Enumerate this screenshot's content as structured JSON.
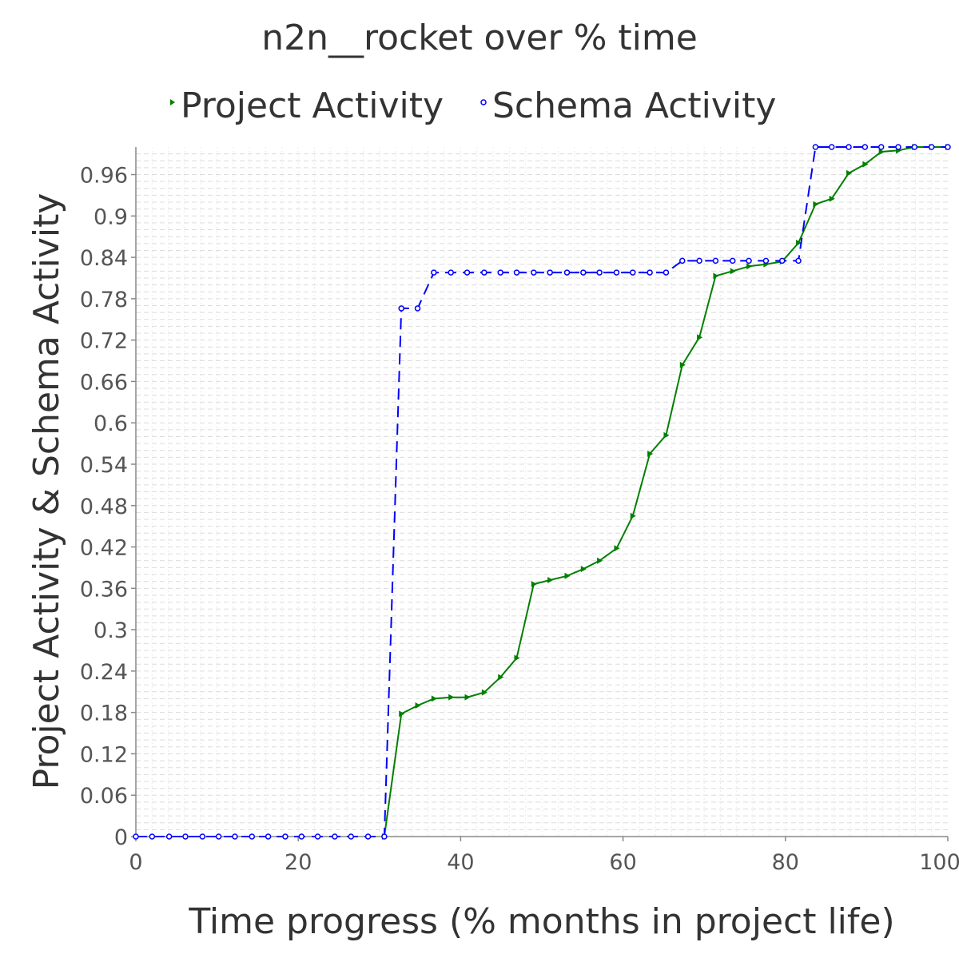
{
  "chart_data": {
    "type": "line",
    "title": "n2n__rocket over % time",
    "xlabel": "Time progress (% months in project life)",
    "ylabel": "Project Activity & Schema Activity",
    "xlim": [
      0,
      100
    ],
    "ylim": [
      0,
      1
    ],
    "x_ticks": [
      "0",
      "20",
      "40",
      "60",
      "80",
      "100"
    ],
    "y_ticks": [
      "0",
      "0.06",
      "0.12",
      "0.18",
      "0.24",
      "0.3",
      "0.36",
      "0.42",
      "0.48",
      "0.54",
      "0.6",
      "0.66",
      "0.72",
      "0.78",
      "0.84",
      "0.9",
      "0.96"
    ],
    "grid": true,
    "legend_position": "top",
    "series": [
      {
        "name": "Project Activity",
        "color": "#008000",
        "line_style": "solid",
        "marker": "triangle-right",
        "points": [
          [
            30.6,
            0.0
          ],
          [
            32.7,
            0.178
          ],
          [
            34.7,
            0.19
          ],
          [
            36.7,
            0.2
          ],
          [
            38.8,
            0.202
          ],
          [
            40.8,
            0.202
          ],
          [
            42.9,
            0.209
          ],
          [
            44.9,
            0.231
          ],
          [
            46.9,
            0.259
          ],
          [
            49.0,
            0.366
          ],
          [
            51.0,
            0.372
          ],
          [
            53.1,
            0.378
          ],
          [
            55.1,
            0.388
          ],
          [
            57.1,
            0.4
          ],
          [
            59.2,
            0.418
          ],
          [
            61.2,
            0.465
          ],
          [
            63.3,
            0.555
          ],
          [
            65.3,
            0.582
          ],
          [
            67.3,
            0.684
          ],
          [
            69.4,
            0.724
          ],
          [
            71.4,
            0.813
          ],
          [
            73.5,
            0.82
          ],
          [
            75.5,
            0.827
          ],
          [
            77.6,
            0.83
          ],
          [
            79.6,
            0.834
          ],
          [
            81.6,
            0.861
          ],
          [
            83.7,
            0.917
          ],
          [
            85.7,
            0.925
          ],
          [
            87.8,
            0.962
          ],
          [
            89.8,
            0.975
          ],
          [
            91.8,
            0.993
          ],
          [
            93.9,
            0.995
          ],
          [
            95.9,
            1.0
          ],
          [
            98.0,
            1.0
          ],
          [
            100.0,
            1.0
          ]
        ]
      },
      {
        "name": "Schema Activity",
        "color": "#0000ff",
        "line_style": "dashed",
        "marker": "circle",
        "points": [
          [
            0.0,
            0.0
          ],
          [
            2.0,
            0.0
          ],
          [
            4.1,
            0.0
          ],
          [
            6.1,
            0.0
          ],
          [
            8.2,
            0.0
          ],
          [
            10.2,
            0.0
          ],
          [
            12.2,
            0.0
          ],
          [
            14.3,
            0.0
          ],
          [
            16.3,
            0.0
          ],
          [
            18.4,
            0.0
          ],
          [
            20.4,
            0.0
          ],
          [
            22.4,
            0.0
          ],
          [
            24.5,
            0.0
          ],
          [
            26.5,
            0.0
          ],
          [
            28.6,
            0.0
          ],
          [
            30.6,
            0.0
          ],
          [
            32.7,
            0.766
          ],
          [
            34.7,
            0.766
          ],
          [
            36.7,
            0.818
          ],
          [
            38.8,
            0.818
          ],
          [
            40.8,
            0.818
          ],
          [
            42.9,
            0.818
          ],
          [
            44.9,
            0.818
          ],
          [
            46.9,
            0.818
          ],
          [
            49.0,
            0.818
          ],
          [
            51.0,
            0.818
          ],
          [
            53.1,
            0.818
          ],
          [
            55.1,
            0.818
          ],
          [
            57.1,
            0.818
          ],
          [
            59.2,
            0.818
          ],
          [
            61.2,
            0.818
          ],
          [
            63.3,
            0.818
          ],
          [
            65.3,
            0.818
          ],
          [
            67.3,
            0.835
          ],
          [
            69.4,
            0.835
          ],
          [
            71.4,
            0.835
          ],
          [
            73.5,
            0.835
          ],
          [
            75.5,
            0.835
          ],
          [
            77.6,
            0.835
          ],
          [
            79.6,
            0.835
          ],
          [
            81.6,
            0.835
          ],
          [
            83.7,
            1.0
          ],
          [
            85.7,
            1.0
          ],
          [
            87.8,
            1.0
          ],
          [
            89.8,
            1.0
          ],
          [
            91.8,
            1.0
          ],
          [
            93.9,
            1.0
          ],
          [
            95.9,
            1.0
          ],
          [
            98.0,
            1.0
          ],
          [
            100.0,
            1.0
          ]
        ]
      }
    ]
  }
}
